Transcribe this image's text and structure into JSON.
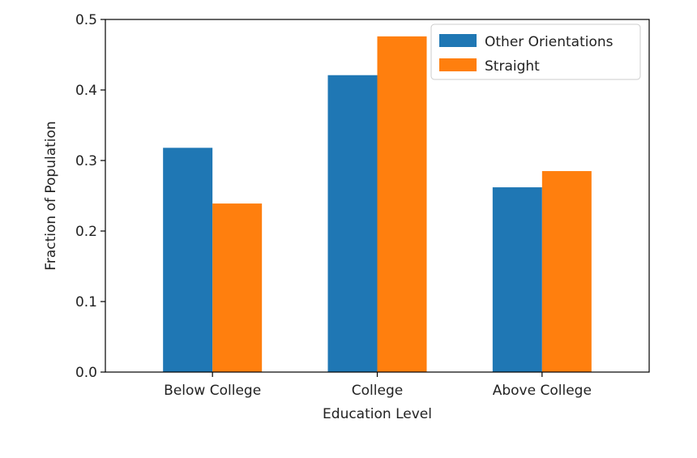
{
  "chart_data": {
    "type": "bar",
    "title": "",
    "xlabel": "Education Level",
    "ylabel": "Fraction of Population",
    "categories": [
      "Below College",
      "College",
      "Above College"
    ],
    "series": [
      {
        "name": "Other Orientations",
        "color": "#1f77b4",
        "values": [
          0.318,
          0.421,
          0.262
        ]
      },
      {
        "name": "Straight",
        "color": "#ff7f0e",
        "values": [
          0.239,
          0.476,
          0.285
        ]
      }
    ],
    "ylim": [
      0,
      0.5
    ],
    "yticks": [
      "0.0",
      "0.1",
      "0.2",
      "0.3",
      "0.4",
      "0.5"
    ],
    "legend_position": "top-right",
    "grid": false
  }
}
